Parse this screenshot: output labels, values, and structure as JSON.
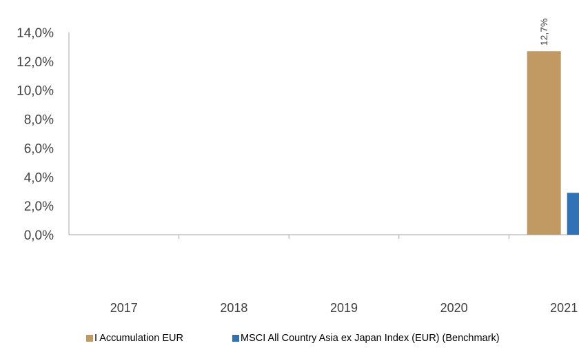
{
  "chart_data": {
    "type": "bar",
    "categories": [
      "2017",
      "2018",
      "2019",
      "2020",
      "2021"
    ],
    "series": [
      {
        "name": "I Accumulation EUR",
        "color": "#c19a63",
        "values": [
          null,
          null,
          null,
          null,
          12.7
        ],
        "data_labels": [
          "",
          "",
          "",
          "",
          "12,7%"
        ]
      },
      {
        "name": "MSCI All Country Asia ex Japan Index (EUR) (Benchmark)",
        "color": "#2f73b6",
        "values": [
          null,
          null,
          null,
          null,
          2.9
        ],
        "data_labels": [
          "",
          "",
          "",
          "",
          ""
        ]
      }
    ],
    "ylim": [
      0,
      14
    ],
    "yticks": [
      0,
      2,
      4,
      6,
      8,
      10,
      12,
      14
    ],
    "ytick_labels": [
      "0,0%",
      "2,0%",
      "4,0%",
      "6,0%",
      "8,0%",
      "10,0%",
      "12,0%",
      "14,0%"
    ],
    "grid": false,
    "legend_position": "bottom"
  }
}
